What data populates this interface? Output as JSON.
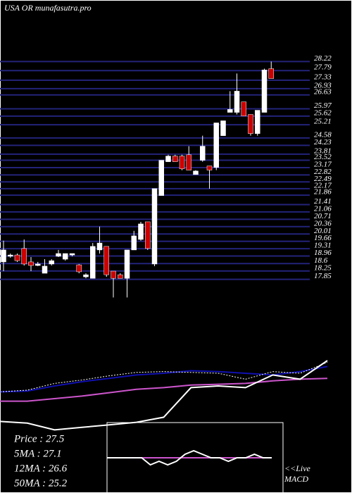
{
  "chart_data": [
    {
      "type": "candlestick",
      "title": "USA OR munafasutra.pro",
      "open": [
        18.68,
        18.95,
        19.01,
        19.32,
        18.68,
        18.51,
        18.14,
        18.58,
        18.95,
        18.81,
        19.01,
        18.54,
        17.97,
        17.9,
        19.25,
        19.42,
        18.24,
        18.07,
        17.9,
        19.25,
        19.75,
        20.59,
        18.58,
        21.84,
        23.45,
        23.72,
        23.72,
        23.78,
        22.84,
        23.52,
        23.25,
        23.18,
        24.69,
        25.8,
        25.8,
        26.3,
        25.7,
        24.79,
        25.8,
        27.88
      ],
      "high": [
        19.69,
        19.08,
        19.08,
        19.75,
        18.91,
        18.68,
        18.81,
        18.81,
        19.25,
        19.08,
        19.08,
        18.58,
        18.14,
        19.58,
        20.36,
        19.42,
        18.24,
        18.14,
        19.25,
        20.16,
        20.59,
        20.59,
        22.17,
        23.52,
        23.78,
        23.78,
        23.78,
        24.19,
        23.05,
        24.69,
        23.25,
        25.3,
        25.4,
        26.81,
        27.65,
        26.3,
        25.7,
        25.9,
        27.88,
        28.22
      ],
      "low": [
        18.24,
        18.88,
        18.68,
        18.51,
        18.24,
        18.48,
        18.14,
        18.51,
        18.91,
        18.74,
        18.95,
        18.14,
        17.9,
        17.9,
        19.08,
        17.97,
        16.99,
        17.9,
        16.99,
        19.25,
        19.69,
        19.25,
        18.48,
        21.84,
        23.45,
        23.45,
        23.05,
        23.05,
        22.84,
        23.45,
        22.17,
        23.05,
        24.69,
        25.8,
        25.7,
        25.63,
        24.69,
        24.69,
        25.8,
        27.41
      ],
      "close": [
        19.25,
        19.01,
        18.74,
        18.58,
        18.51,
        18.58,
        18.48,
        18.74,
        19.08,
        19.08,
        19.08,
        18.21,
        18.07,
        19.42,
        19.58,
        18.07,
        17.9,
        17.9,
        19.25,
        19.92,
        20.49,
        19.32,
        22.17,
        23.52,
        23.72,
        23.45,
        23.11,
        23.05,
        23.01,
        24.19,
        23.05,
        25.3,
        25.4,
        25.94,
        26.81,
        25.63,
        24.79,
        25.9,
        27.82,
        27.41
      ],
      "up_color": "#ffffff",
      "down_color": "#cc0000",
      "grid_color": "#23237a",
      "ylim": [
        16.9,
        28.4
      ],
      "yticks": [
        28.22,
        27.79,
        27.33,
        26.93,
        26.63,
        25.97,
        25.62,
        25.21,
        24.58,
        24.23,
        23.81,
        23.52,
        23.17,
        22.82,
        22.49,
        22.17,
        21.86,
        21.41,
        21.06,
        20.71,
        20.36,
        20.01,
        19.66,
        19.31,
        18.96,
        18.6,
        18.25,
        17.85
      ],
      "grid": true
    },
    {
      "type": "line",
      "ylim": [
        0,
        100
      ],
      "series": [
        {
          "color": "#cc55cc",
          "values": [
            42,
            42,
            45,
            48,
            52,
            56,
            58,
            61,
            62,
            63,
            66,
            68,
            69
          ]
        },
        {
          "color": "#1010b0",
          "values": [
            53,
            54,
            60,
            65,
            69,
            73,
            75,
            78,
            77,
            75,
            73,
            77,
            83
          ]
        },
        {
          "color": "#ffffff",
          "dashed": true,
          "values": [
            53,
            55,
            63,
            67,
            72,
            76,
            77,
            76,
            75,
            68,
            77,
            75,
            88
          ]
        },
        {
          "color": "#ffffff",
          "values": [
            18,
            16,
            8,
            11,
            14,
            17,
            23,
            58,
            60,
            58,
            73,
            68,
            90
          ]
        }
      ],
      "annotations": [
        "Price   :  27.5",
        "5MA : 27.1",
        "12MA : 26.6",
        "50MA : 25.2"
      ]
    },
    {
      "type": "line",
      "ylim": [
        -10,
        10
      ],
      "series": [
        {
          "color": "#cc55cc",
          "values": [
            0,
            0
          ]
        },
        {
          "color": "#ffffff",
          "values": [
            0,
            0,
            0,
            0,
            0,
            -2,
            -1,
            -2,
            -1,
            1,
            2,
            1,
            0,
            0,
            -1,
            0,
            0,
            1,
            0,
            0
          ]
        }
      ],
      "annotations": [
        "<<Live",
        "MACD"
      ]
    }
  ]
}
